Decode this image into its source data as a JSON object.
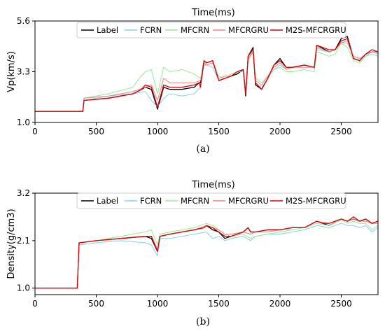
{
  "chart_data": [
    {
      "type": "line",
      "panel_caption": "(a)",
      "xlabel": "Time(ms)",
      "ylabel": "Vp(km/s)",
      "xlim": [
        0,
        2800
      ],
      "ylim": [
        1.0,
        5.6
      ],
      "xticks": [
        "0",
        "500",
        "1000",
        "1500",
        "2000",
        "2500"
      ],
      "yticks": [
        "1.0",
        "3.3",
        "5.6"
      ],
      "legend_position": "top",
      "grid": false,
      "series": [
        {
          "name": "Label",
          "color": "#000000",
          "x": [
            0,
            390,
            400,
            600,
            800,
            870,
            900,
            950,
            1000,
            1050,
            1100,
            1200,
            1300,
            1340,
            1350,
            1380,
            1400,
            1450,
            1500,
            1550,
            1600,
            1650,
            1700,
            1720,
            1740,
            1780,
            1800,
            1850,
            1900,
            1950,
            2000,
            2050,
            2100,
            2200,
            2280,
            2300,
            2400,
            2450,
            2500,
            2550,
            2600,
            2650,
            2700,
            2750,
            2800
          ],
          "y": [
            1.5,
            1.5,
            2.0,
            2.1,
            2.3,
            2.5,
            2.6,
            2.5,
            1.6,
            2.6,
            2.5,
            2.5,
            2.6,
            2.8,
            2.8,
            3.8,
            3.7,
            3.8,
            2.9,
            3.0,
            3.1,
            3.2,
            3.4,
            2.2,
            4.0,
            4.4,
            2.7,
            2.5,
            3.0,
            3.6,
            3.9,
            3.5,
            3.5,
            3.6,
            3.5,
            4.5,
            4.2,
            4.3,
            4.8,
            4.9,
            3.9,
            3.8,
            4.1,
            4.2,
            4.2
          ]
        },
        {
          "name": "FCRN",
          "color": "#87cefa",
          "x": [
            0,
            390,
            400,
            600,
            800,
            900,
            950,
            1000,
            1050,
            1100,
            1200,
            1300,
            1350,
            1380,
            1400,
            1450,
            1500,
            1550,
            1600,
            1650,
            1700,
            1720,
            1740,
            1780,
            1800,
            1850,
            1900,
            1950,
            2000,
            2050,
            2100,
            2200,
            2280,
            2300,
            2400,
            2450,
            2500,
            2550,
            2600,
            2650,
            2700,
            2750,
            2800
          ],
          "y": [
            1.5,
            1.5,
            2.0,
            2.2,
            2.3,
            2.4,
            2.0,
            1.7,
            2.1,
            2.3,
            2.2,
            2.3,
            2.6,
            3.6,
            3.6,
            3.5,
            2.9,
            3.0,
            3.1,
            3.3,
            3.3,
            2.3,
            3.9,
            4.2,
            2.8,
            2.6,
            3.0,
            3.4,
            3.6,
            3.4,
            3.5,
            3.6,
            3.5,
            4.3,
            4.2,
            4.3,
            4.6,
            4.6,
            4.0,
            3.9,
            4.0,
            4.2,
            4.1
          ]
        },
        {
          "name": "MFCRN",
          "color": "#90ee90",
          "x": [
            0,
            390,
            400,
            600,
            800,
            850,
            900,
            950,
            1000,
            1050,
            1100,
            1200,
            1300,
            1350,
            1380,
            1400,
            1450,
            1500,
            1550,
            1600,
            1650,
            1700,
            1720,
            1740,
            1780,
            1800,
            1850,
            1900,
            1950,
            2000,
            2050,
            2100,
            2200,
            2280,
            2300,
            2400,
            2450,
            2500,
            2550,
            2600,
            2650,
            2700,
            2750,
            2800
          ],
          "y": [
            1.5,
            1.5,
            2.1,
            2.3,
            2.6,
            3.0,
            3.3,
            3.4,
            2.3,
            3.5,
            3.3,
            3.4,
            3.2,
            3.0,
            3.6,
            3.7,
            3.8,
            3.1,
            3.0,
            3.2,
            3.3,
            3.4,
            2.5,
            3.8,
            4.2,
            3.0,
            2.8,
            3.1,
            3.4,
            3.5,
            3.3,
            3.3,
            3.4,
            3.3,
            4.2,
            4.0,
            4.1,
            4.6,
            4.4,
            3.8,
            3.7,
            4.0,
            4.1,
            4.0
          ]
        },
        {
          "name": "MFCRGRU",
          "color": "#f08080",
          "x": [
            0,
            390,
            400,
            600,
            800,
            900,
            950,
            1000,
            1050,
            1100,
            1200,
            1300,
            1350,
            1380,
            1400,
            1450,
            1500,
            1550,
            1600,
            1650,
            1700,
            1720,
            1740,
            1780,
            1800,
            1850,
            1900,
            1950,
            2000,
            2050,
            2100,
            2200,
            2280,
            2300,
            2400,
            2450,
            2500,
            2550,
            2600,
            2650,
            2700,
            2750,
            2800
          ],
          "y": [
            1.5,
            1.5,
            2.1,
            2.2,
            2.4,
            2.6,
            2.7,
            2.0,
            3.0,
            2.8,
            2.8,
            2.8,
            2.9,
            3.7,
            3.6,
            3.7,
            3.0,
            3.1,
            3.1,
            3.3,
            3.4,
            2.4,
            3.9,
            4.2,
            2.9,
            2.7,
            3.1,
            3.5,
            3.7,
            3.4,
            3.5,
            3.5,
            3.5,
            4.4,
            4.2,
            4.3,
            4.6,
            4.7,
            4.0,
            3.9,
            4.1,
            4.2,
            4.2
          ]
        },
        {
          "name": "M2S-MFCRGRU",
          "color": "#e00000",
          "x": [
            0,
            390,
            400,
            600,
            800,
            870,
            900,
            950,
            1000,
            1050,
            1100,
            1200,
            1300,
            1340,
            1350,
            1380,
            1400,
            1450,
            1500,
            1550,
            1600,
            1650,
            1700,
            1720,
            1740,
            1780,
            1800,
            1850,
            1900,
            1950,
            2000,
            2050,
            2100,
            2200,
            2280,
            2300,
            2400,
            2450,
            2500,
            2550,
            2600,
            2650,
            2700,
            2750,
            2800
          ],
          "y": [
            1.5,
            1.5,
            2.0,
            2.1,
            2.3,
            2.5,
            2.7,
            2.6,
            1.7,
            2.7,
            2.6,
            2.6,
            2.7,
            2.8,
            2.6,
            3.8,
            3.7,
            3.8,
            2.9,
            3.0,
            3.1,
            3.3,
            3.4,
            2.3,
            4.0,
            4.3,
            2.8,
            2.5,
            3.0,
            3.6,
            3.8,
            3.5,
            3.5,
            3.6,
            3.5,
            4.5,
            4.3,
            4.3,
            4.7,
            4.8,
            3.9,
            3.8,
            4.1,
            4.3,
            4.2
          ]
        }
      ]
    },
    {
      "type": "line",
      "panel_caption": "(b)",
      "xlabel": "Time(ms)",
      "ylabel": "Density(g/cm3)",
      "xlim": [
        0,
        2800
      ],
      "ylim": [
        0.85,
        3.2
      ],
      "xticks": [
        "0",
        "500",
        "1000",
        "1500",
        "2000",
        "2500"
      ],
      "yticks": [
        "1.0",
        "2.1",
        "3.2"
      ],
      "legend_position": "top",
      "grid": false,
      "series": [
        {
          "name": "Label",
          "color": "#000000",
          "x": [
            0,
            345,
            360,
            500,
            700,
            900,
            950,
            1000,
            1020,
            1100,
            1200,
            1300,
            1380,
            1400,
            1450,
            1500,
            1550,
            1600,
            1700,
            1740,
            1760,
            1800,
            1900,
            2000,
            2100,
            2200,
            2300,
            2350,
            2400,
            2500,
            2550,
            2600,
            2650,
            2700,
            2750,
            2800
          ],
          "y": [
            1.0,
            1.0,
            2.05,
            2.1,
            2.15,
            2.2,
            2.15,
            1.85,
            2.2,
            2.25,
            2.3,
            2.35,
            2.4,
            2.45,
            2.35,
            2.3,
            2.15,
            2.2,
            2.3,
            2.4,
            2.3,
            2.3,
            2.35,
            2.35,
            2.4,
            2.4,
            2.55,
            2.5,
            2.45,
            2.6,
            2.55,
            2.6,
            2.55,
            2.6,
            2.5,
            2.55
          ]
        },
        {
          "name": "FCRN",
          "color": "#87cefa",
          "x": [
            0,
            345,
            360,
            500,
            700,
            900,
            950,
            1000,
            1020,
            1100,
            1200,
            1300,
            1400,
            1450,
            1500,
            1550,
            1600,
            1700,
            1760,
            1800,
            1900,
            2000,
            2100,
            2200,
            2300,
            2400,
            2500,
            2550,
            2600,
            2650,
            2700,
            2750,
            2800
          ],
          "y": [
            1.0,
            1.0,
            2.0,
            2.05,
            2.1,
            2.05,
            2.0,
            1.75,
            2.15,
            2.15,
            2.2,
            2.25,
            2.3,
            2.15,
            2.2,
            2.1,
            2.15,
            2.2,
            2.1,
            2.2,
            2.25,
            2.25,
            2.3,
            2.35,
            2.45,
            2.4,
            2.5,
            2.45,
            2.45,
            2.4,
            2.45,
            2.3,
            2.4
          ]
        },
        {
          "name": "MFCRN",
          "color": "#90ee90",
          "x": [
            0,
            345,
            360,
            500,
            700,
            900,
            950,
            1000,
            1020,
            1100,
            1200,
            1300,
            1400,
            1450,
            1500,
            1550,
            1600,
            1700,
            1760,
            1800,
            1900,
            2000,
            2100,
            2200,
            2300,
            2400,
            2500,
            2550,
            2600,
            2650,
            2700,
            2750,
            2800
          ],
          "y": [
            1.0,
            1.0,
            2.05,
            2.1,
            2.2,
            2.3,
            2.35,
            2.0,
            2.25,
            2.3,
            2.35,
            2.4,
            2.5,
            2.45,
            2.35,
            2.25,
            2.2,
            2.25,
            2.15,
            2.2,
            2.25,
            2.3,
            2.35,
            2.4,
            2.5,
            2.45,
            2.6,
            2.5,
            2.55,
            2.5,
            2.5,
            2.35,
            2.45
          ]
        },
        {
          "name": "MFCRGRU",
          "color": "#f08080",
          "x": [
            0,
            345,
            360,
            500,
            700,
            900,
            950,
            1000,
            1020,
            1100,
            1200,
            1300,
            1400,
            1450,
            1500,
            1550,
            1600,
            1700,
            1760,
            1800,
            1900,
            2000,
            2100,
            2200,
            2300,
            2400,
            2500,
            2550,
            2600,
            2650,
            2700,
            2750,
            2800
          ],
          "y": [
            1.0,
            1.0,
            2.05,
            2.1,
            2.15,
            2.2,
            2.2,
            1.9,
            2.2,
            2.25,
            2.3,
            2.35,
            2.45,
            2.4,
            2.35,
            2.25,
            2.25,
            2.3,
            2.25,
            2.3,
            2.3,
            2.35,
            2.4,
            2.4,
            2.55,
            2.5,
            2.6,
            2.55,
            2.6,
            2.55,
            2.55,
            2.5,
            2.5
          ]
        },
        {
          "name": "M2S-MFCRGRU",
          "color": "#e00000",
          "x": [
            0,
            345,
            360,
            500,
            700,
            900,
            950,
            1000,
            1020,
            1100,
            1200,
            1300,
            1380,
            1400,
            1450,
            1500,
            1550,
            1600,
            1700,
            1740,
            1760,
            1800,
            1900,
            2000,
            2100,
            2200,
            2300,
            2350,
            2400,
            2500,
            2550,
            2600,
            2650,
            2700,
            2750,
            2800
          ],
          "y": [
            1.0,
            1.0,
            2.05,
            2.1,
            2.15,
            2.2,
            2.2,
            1.85,
            2.2,
            2.25,
            2.3,
            2.35,
            2.4,
            2.45,
            2.4,
            2.3,
            2.2,
            2.2,
            2.3,
            2.4,
            2.3,
            2.3,
            2.35,
            2.35,
            2.4,
            2.4,
            2.55,
            2.5,
            2.5,
            2.6,
            2.55,
            2.65,
            2.55,
            2.6,
            2.5,
            2.55
          ]
        }
      ]
    }
  ]
}
